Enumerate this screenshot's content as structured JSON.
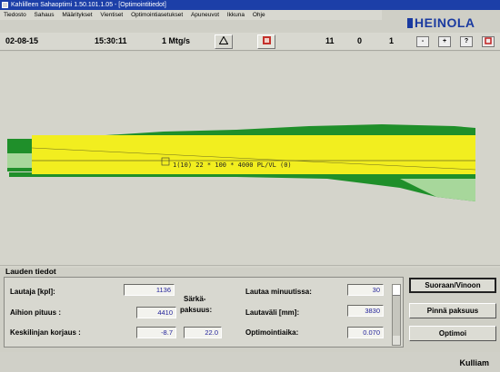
{
  "titlebar": {
    "title": "Kahlilleen Sahaoptimi 1.50.101.1.05 - [Optimointitiedot]"
  },
  "menu": {
    "items": [
      "Tiedosto",
      "Sahaus",
      "Määritykset",
      "Vientiset",
      "Optimointiasetukset",
      "Apuneuvot",
      "Ikkuna",
      "Ohje"
    ]
  },
  "logo": {
    "text": "HEINOLA"
  },
  "toolbar": {
    "date": "02-08-15",
    "time": "15:30:11",
    "rate": "1 Mtg/s",
    "count_a": "11",
    "count_b": "0",
    "count_c": "1",
    "icons": [
      "triangle-warning-icon",
      "book-icon"
    ],
    "nav_buttons": [
      "-",
      "+",
      "?",
      "stop"
    ]
  },
  "canvas": {
    "log_label": "1(10) 22 * 100 * 4000 PL/VL (0)",
    "colors": {
      "board": "#f2ee1f",
      "bark": "#1f8f2a",
      "wane": "#a7d79b",
      "background": "#d4d4cb"
    }
  },
  "panel": {
    "title": "Lauden tiedot",
    "fields": [
      {
        "label": "Lautaja [kpl]:",
        "value": "1136"
      },
      {
        "label": "Aihion pituus :",
        "value": "4410"
      },
      {
        "label": "Keskilinjan korjaus :",
        "value": "-8.7",
        "value2": "22.0"
      },
      {
        "label": "Särkä- paksuus:"
      },
      {
        "label": "Lautaa minuutissa:",
        "value": "30"
      },
      {
        "label": "Lautaväli [mm]:",
        "value": "3830"
      },
      {
        "label": "Optimointiaika:",
        "value": "0.070"
      }
    ],
    "middle_label_1": "Särkä-",
    "middle_label_2": "paksuus:"
  },
  "buttons": {
    "straight_vs_skewed": "Suoraan/Vinoon",
    "rotate_thickness": "Pinnä paksuus",
    "optimize": "Optimoi"
  },
  "footer": {
    "label": "Kulliam"
  }
}
